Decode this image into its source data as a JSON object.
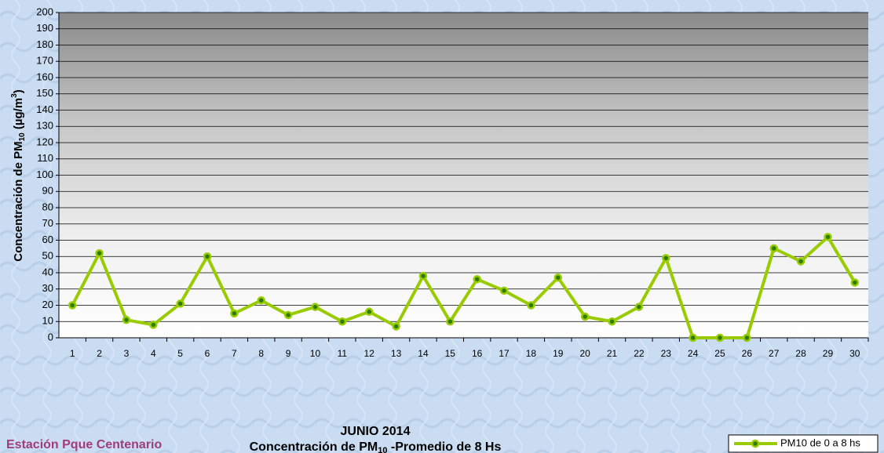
{
  "chart_data": {
    "type": "line",
    "title": "JUNIO 2014",
    "subtitle": [
      "Concentración de PM",
      "10",
      " -Promedio de 8 Hs"
    ],
    "ylabel": [
      "Concentración de PM",
      "10",
      " (µg/m",
      "3",
      ")"
    ],
    "annotation": "Estación  Pque Centenario",
    "categories": [
      "1",
      "2",
      "3",
      "4",
      "5",
      "6",
      "7",
      "8",
      "9",
      "10",
      "11",
      "12",
      "13",
      "14",
      "15",
      "16",
      "17",
      "18",
      "19",
      "20",
      "21",
      "22",
      "23",
      "24",
      "25",
      "26",
      "27",
      "28",
      "29",
      "30"
    ],
    "series": [
      {
        "name": "PM10 de 0 a 8 hs",
        "color": "#99cc00",
        "values": [
          20,
          52,
          11,
          8,
          21,
          50,
          15,
          23,
          14,
          19,
          10,
          16,
          7,
          38,
          10,
          36,
          29,
          20,
          37,
          13,
          10,
          19,
          49,
          0,
          0,
          0,
          55,
          47,
          62,
          34
        ]
      }
    ],
    "ylim": [
      0,
      200
    ],
    "yticks": [
      0,
      10,
      20,
      30,
      40,
      50,
      60,
      70,
      80,
      90,
      100,
      110,
      120,
      130,
      140,
      150,
      160,
      170,
      180,
      190,
      200
    ],
    "grid": true,
    "legend": "bottom-right"
  }
}
